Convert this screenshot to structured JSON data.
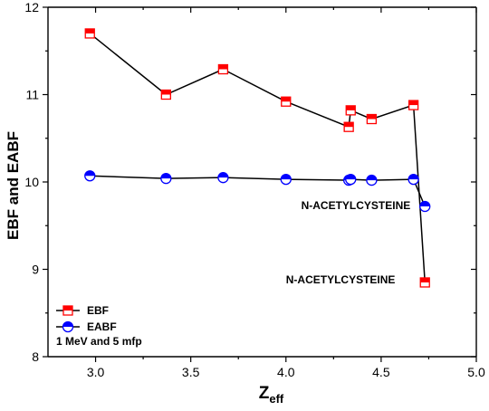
{
  "chart_data": {
    "type": "line",
    "xlabel_main": "Z",
    "xlabel_sub": "eff",
    "ylabel": "EBF and EABF",
    "xlim": [
      2.75,
      5.0
    ],
    "ylim": [
      8,
      12
    ],
    "xticks": [
      3.0,
      3.5,
      4.0,
      4.5,
      5.0
    ],
    "xtick_labels": [
      "3.0",
      "3.5",
      "4.0",
      "4.5",
      "5.0"
    ],
    "yticks": [
      8,
      9,
      10,
      11,
      12
    ],
    "ytick_labels": [
      "8",
      "9",
      "10",
      "11",
      "12"
    ],
    "grid": false,
    "legend_position": "bottom-left",
    "series": [
      {
        "name": "EBF",
        "marker": "square-half-filled",
        "color": "#ff0000",
        "x": [
          2.97,
          3.37,
          3.67,
          4.0,
          4.33,
          4.34,
          4.45,
          4.67,
          4.73
        ],
        "y": [
          11.7,
          11.0,
          11.29,
          10.92,
          10.63,
          10.82,
          10.72,
          10.88,
          8.85
        ]
      },
      {
        "name": "EABF",
        "marker": "circle-half-filled",
        "color": "#0000ff",
        "x": [
          2.97,
          3.37,
          3.67,
          4.0,
          4.33,
          4.34,
          4.45,
          4.67,
          4.73
        ],
        "y": [
          10.07,
          10.04,
          10.05,
          10.03,
          10.02,
          10.03,
          10.02,
          10.03,
          9.72
        ]
      }
    ],
    "annotations": [
      {
        "text": "N-ACETYLCYSTEINE",
        "x": 4.08,
        "y": 9.69
      },
      {
        "text": "N-ACETYLCYSTEINE",
        "x": 4.0,
        "y": 8.84
      }
    ],
    "legend_note": "1 MeV and 5 mfp"
  }
}
